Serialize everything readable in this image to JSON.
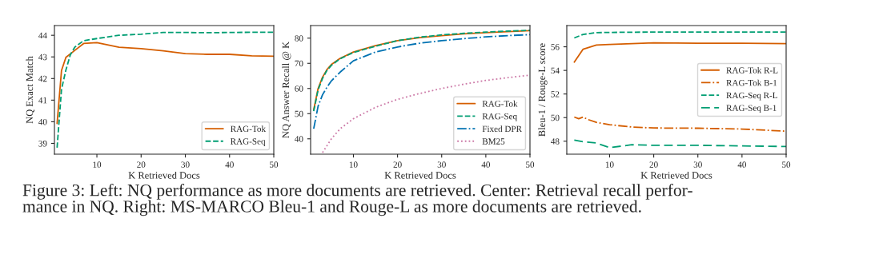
{
  "chart_data": [
    {
      "type": "line",
      "xlabel": "K Retrieved Docs",
      "ylabel": "NQ Exact Match",
      "xlim": [
        0.4,
        50
      ],
      "xticks": [
        10,
        20,
        30,
        40,
        50
      ],
      "ylim": [
        38.5,
        44.45
      ],
      "yticks": [
        39,
        40,
        41,
        42,
        43,
        44
      ],
      "grid": false,
      "legend": "bottom right",
      "series": [
        {
          "name": "RAG-Tok",
          "color": "#d55e00",
          "line_style": "solid",
          "x": [
            1,
            2,
            3,
            5,
            7,
            10,
            15,
            20,
            25,
            30,
            35,
            40,
            45,
            50
          ],
          "values": [
            39.92,
            42.37,
            42.98,
            43.3,
            43.62,
            43.66,
            43.45,
            43.38,
            43.28,
            43.15,
            43.12,
            43.12,
            43.05,
            43.03
          ]
        },
        {
          "name": "RAG-Seq",
          "color": "#009e73",
          "line_style": "dashed",
          "x": [
            1,
            2,
            3,
            4,
            5,
            7,
            10,
            15,
            20,
            25,
            30,
            35,
            40,
            45,
            50
          ],
          "values": [
            38.8,
            41.5,
            42.4,
            43.1,
            43.45,
            43.75,
            43.85,
            44.0,
            44.05,
            44.13,
            44.13,
            44.12,
            44.13,
            44.14,
            44.14
          ]
        }
      ],
      "annotations": [
        "Figure 3: Left: NQ performance as more documents are retrieved. Center: Retrieval recall perfor-\nmance in NQ. Right: MS-MARCO Bleu-1 and Rouge-L as more documents are retrieved."
      ]
    },
    {
      "type": "line",
      "xlabel": "K Retrieved Docs",
      "ylabel": "NQ Answer Recall @ K",
      "xlim": [
        0.3,
        50
      ],
      "xticks": [
        10,
        20,
        30,
        40,
        50
      ],
      "ylim": [
        33.9,
        85
      ],
      "yticks": [
        40,
        50,
        60,
        70,
        80
      ],
      "grid": false,
      "legend": "bottom right",
      "series": [
        {
          "name": "RAG-Tok",
          "color": "#d55e00",
          "line_style": "solid",
          "x": [
            1,
            2,
            3,
            4,
            5,
            7,
            10,
            15,
            20,
            25,
            30,
            35,
            40,
            45,
            50
          ],
          "values": [
            51.5,
            60,
            64.5,
            67.5,
            69.5,
            72,
            74.5,
            77,
            79,
            80.2,
            81,
            81.7,
            82.2,
            82.6,
            83
          ]
        },
        {
          "name": "RAG-Seq",
          "color": "#009e73",
          "line_style": "dashed",
          "x": [
            1,
            2,
            3,
            4,
            5,
            7,
            10,
            15,
            20,
            25,
            30,
            35,
            40,
            45,
            50
          ],
          "values": [
            51,
            59.5,
            64,
            67.2,
            69.2,
            71.8,
            74.3,
            76.8,
            79,
            80.4,
            81.3,
            81.9,
            82.4,
            82.8,
            83.1
          ]
        },
        {
          "name": "Fixed DPR",
          "color": "#0072b2",
          "line_style": "dashdot",
          "x": [
            1,
            2,
            3,
            4,
            5,
            7,
            10,
            15,
            20,
            25,
            30,
            35,
            40,
            45,
            50
          ],
          "values": [
            44,
            53,
            57.5,
            60.5,
            63,
            66.5,
            71,
            74.5,
            76.5,
            78,
            79,
            79.8,
            80.5,
            81,
            81.4
          ]
        },
        {
          "name": "BM25",
          "color": "#cc79a7",
          "line_style": "dotted",
          "x": [
            3,
            5,
            7,
            10,
            15,
            20,
            25,
            30,
            35,
            40,
            45,
            50
          ],
          "values": [
            34.5,
            40,
            44,
            48,
            52.5,
            55.7,
            58,
            60,
            61.7,
            63.2,
            64.3,
            65.3
          ]
        }
      ]
    },
    {
      "type": "line",
      "xlabel": "K Retrieved Docs",
      "ylabel": "Bleu-1 / Rouge-L score",
      "xlim": [
        0.3,
        50
      ],
      "xticks": [
        10,
        20,
        30,
        40,
        50
      ],
      "ylim": [
        46.9,
        57.8
      ],
      "yticks": [
        48,
        50,
        52,
        54,
        56
      ],
      "grid": false,
      "legend": "right",
      "series": [
        {
          "name": "RAG-Tok R-L",
          "color": "#d55e00",
          "line_style": "solid",
          "x": [
            2,
            4,
            7,
            10,
            20,
            30,
            40,
            50
          ],
          "values": [
            54.7,
            55.8,
            56.15,
            56.2,
            56.33,
            56.3,
            56.3,
            56.27
          ]
        },
        {
          "name": "RAG-Tok B-1",
          "color": "#d55e00",
          "line_style": "dashdot",
          "x": [
            2,
            3,
            4,
            5,
            7,
            10,
            15,
            20,
            30,
            40,
            50
          ],
          "values": [
            50.05,
            49.9,
            50.05,
            49.85,
            49.6,
            49.4,
            49.2,
            49.12,
            49.1,
            49.03,
            48.85
          ]
        },
        {
          "name": "RAG-Seq R-L",
          "color": "#009e73",
          "line_style": "dashed",
          "x": [
            2,
            4,
            7,
            10,
            20,
            30,
            40,
            50
          ],
          "values": [
            56.75,
            57.05,
            57.2,
            57.22,
            57.25,
            57.25,
            57.25,
            57.25
          ]
        },
        {
          "name": "RAG-Seq B-1",
          "color": "#009e73",
          "line_style": "longdash",
          "x": [
            2,
            4,
            7,
            10,
            15,
            20,
            30,
            40,
            50
          ],
          "values": [
            48.1,
            47.95,
            47.85,
            47.45,
            47.7,
            47.65,
            47.65,
            47.6,
            47.55
          ]
        }
      ]
    }
  ]
}
